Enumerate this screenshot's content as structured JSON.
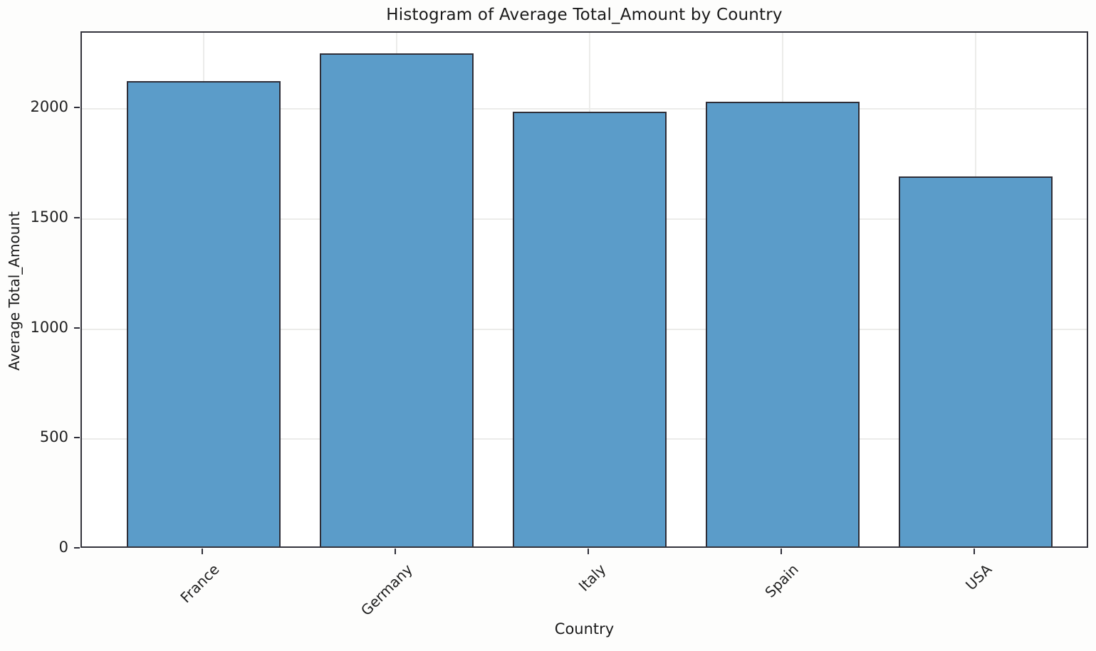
{
  "chart_data": {
    "type": "bar",
    "title": "Histogram of Average Total_Amount by Country",
    "xlabel": "Country",
    "ylabel": "Average Total_Amount",
    "categories": [
      "France",
      "Germany",
      "Italy",
      "Spain",
      "USA"
    ],
    "values": [
      2115,
      2240,
      1975,
      2020,
      1680
    ],
    "ylim": [
      0,
      2346
    ],
    "yticks": [
      0,
      500,
      1000,
      1500,
      2000
    ],
    "grid": true,
    "legend": "none",
    "bar_color": "#5b9cc9",
    "bar_edge_color": "#2e2e38",
    "x_tick_rotation_deg": 45
  }
}
